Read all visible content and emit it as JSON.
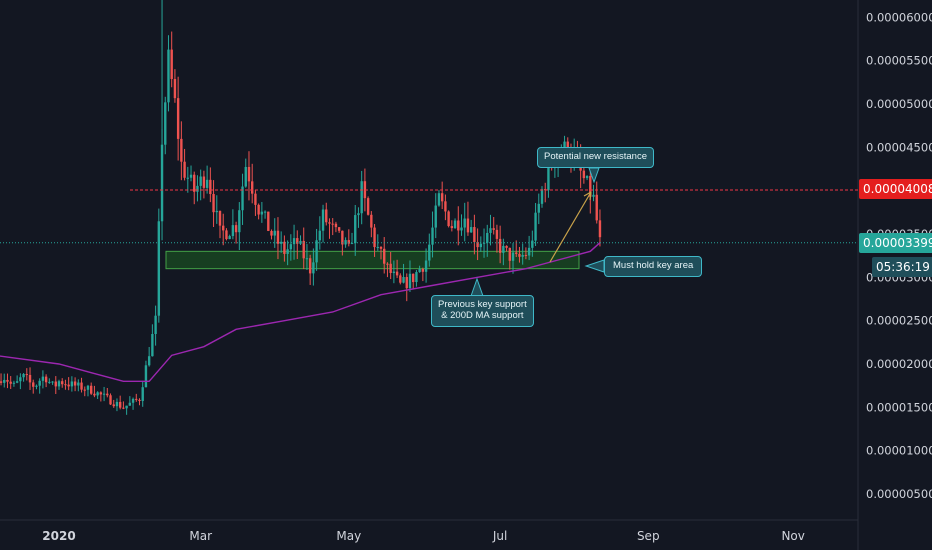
{
  "chart_data": {
    "type": "candlestick",
    "x_axis": {
      "ticks": [
        "2020",
        "Mar",
        "May",
        "Jul",
        "Sep",
        "Nov"
      ],
      "major_tick": "2020"
    },
    "y_axis": {
      "range": [
        2e-07,
        6.2e-06
      ],
      "ticks": [
        "0.00006000",
        "0.00005500",
        "0.00005000",
        "0.00004500",
        "0.00003500",
        "0.00003000",
        "0.00002500",
        "0.00002000",
        "0.00001500",
        "0.00001000",
        "0.00000500"
      ]
    },
    "price_tags": {
      "resistance_level": "0.00004008",
      "last_price": "0.00003399",
      "countdown": "05:36:19"
    },
    "series": [
      {
        "name": "price",
        "type": "candlestick",
        "close_path": [
          [
            0,
            1.8e-06
          ],
          [
            5,
            1.75e-06
          ],
          [
            10,
            1.7e-06
          ],
          [
            15,
            1.6e-06
          ],
          [
            20,
            1.5e-06
          ],
          [
            25,
            1.6e-06
          ],
          [
            30,
            2.5e-06
          ],
          [
            32,
            4.6e-06
          ],
          [
            34,
            5.5e-06
          ],
          [
            36,
            5e-06
          ],
          [
            38,
            4.3e-06
          ],
          [
            42,
            4e-06
          ],
          [
            46,
            4.2e-06
          ],
          [
            50,
            3.5e-06
          ],
          [
            55,
            3.6e-06
          ],
          [
            58,
            4.3e-06
          ],
          [
            62,
            3.8e-06
          ],
          [
            66,
            3.5e-06
          ],
          [
            70,
            3.3e-06
          ],
          [
            74,
            3.4e-06
          ],
          [
            78,
            3.1e-06
          ],
          [
            82,
            3.7e-06
          ],
          [
            86,
            3.5e-06
          ],
          [
            90,
            3.3e-06
          ],
          [
            94,
            4e-06
          ],
          [
            98,
            3.4e-06
          ],
          [
            102,
            3.1e-06
          ],
          [
            106,
            2.9e-06
          ],
          [
            110,
            3e-06
          ],
          [
            114,
            3.2e-06
          ],
          [
            118,
            3.9e-06
          ],
          [
            122,
            3.6e-06
          ],
          [
            126,
            3.7e-06
          ],
          [
            130,
            3.4e-06
          ],
          [
            134,
            3.5e-06
          ],
          [
            138,
            3.3e-06
          ],
          [
            142,
            3.2e-06
          ],
          [
            146,
            3.3e-06
          ],
          [
            150,
            4e-06
          ],
          [
            154,
            4.4e-06
          ],
          [
            158,
            4.5e-06
          ],
          [
            162,
            4.2e-06
          ],
          [
            166,
            3.9e-06
          ],
          [
            168,
            3.4e-06
          ]
        ]
      },
      {
        "name": "200D MA",
        "type": "line",
        "color": "#9c27b0",
        "points": [
          [
            -60,
            2.7e-06
          ],
          [
            -40,
            2.3e-06
          ],
          [
            -20,
            2.1e-06
          ],
          [
            0,
            2e-06
          ],
          [
            10,
            1.9e-06
          ],
          [
            20,
            1.8e-06
          ],
          [
            28,
            1.8e-06
          ],
          [
            35,
            2.1e-06
          ],
          [
            45,
            2.2e-06
          ],
          [
            55,
            2.4e-06
          ],
          [
            70,
            2.5e-06
          ],
          [
            85,
            2.6e-06
          ],
          [
            100,
            2.8e-06
          ],
          [
            115,
            2.9e-06
          ],
          [
            130,
            3e-06
          ],
          [
            145,
            3.1e-06
          ],
          [
            155,
            3.2e-06
          ],
          [
            165,
            3.3e-06
          ],
          [
            168,
            3.4e-06
          ]
        ]
      }
    ],
    "horizontal_lines": [
      {
        "value": 4.008e-06,
        "color": "#f23645",
        "style": "dashed"
      },
      {
        "value": 3.399e-06,
        "color": "#26a69a",
        "style": "dotted"
      }
    ],
    "zones": [
      {
        "name": "key support zone",
        "from": 3.1e-06,
        "to": 3.3e-06,
        "color": "#1b5e20"
      }
    ],
    "annotations": [
      {
        "id": "resistance",
        "text": "Potential new resistance"
      },
      {
        "id": "hold",
        "text": "Must hold key area"
      },
      {
        "id": "support",
        "lines": [
          "Previous key support",
          "& 200D MA support"
        ]
      }
    ]
  }
}
